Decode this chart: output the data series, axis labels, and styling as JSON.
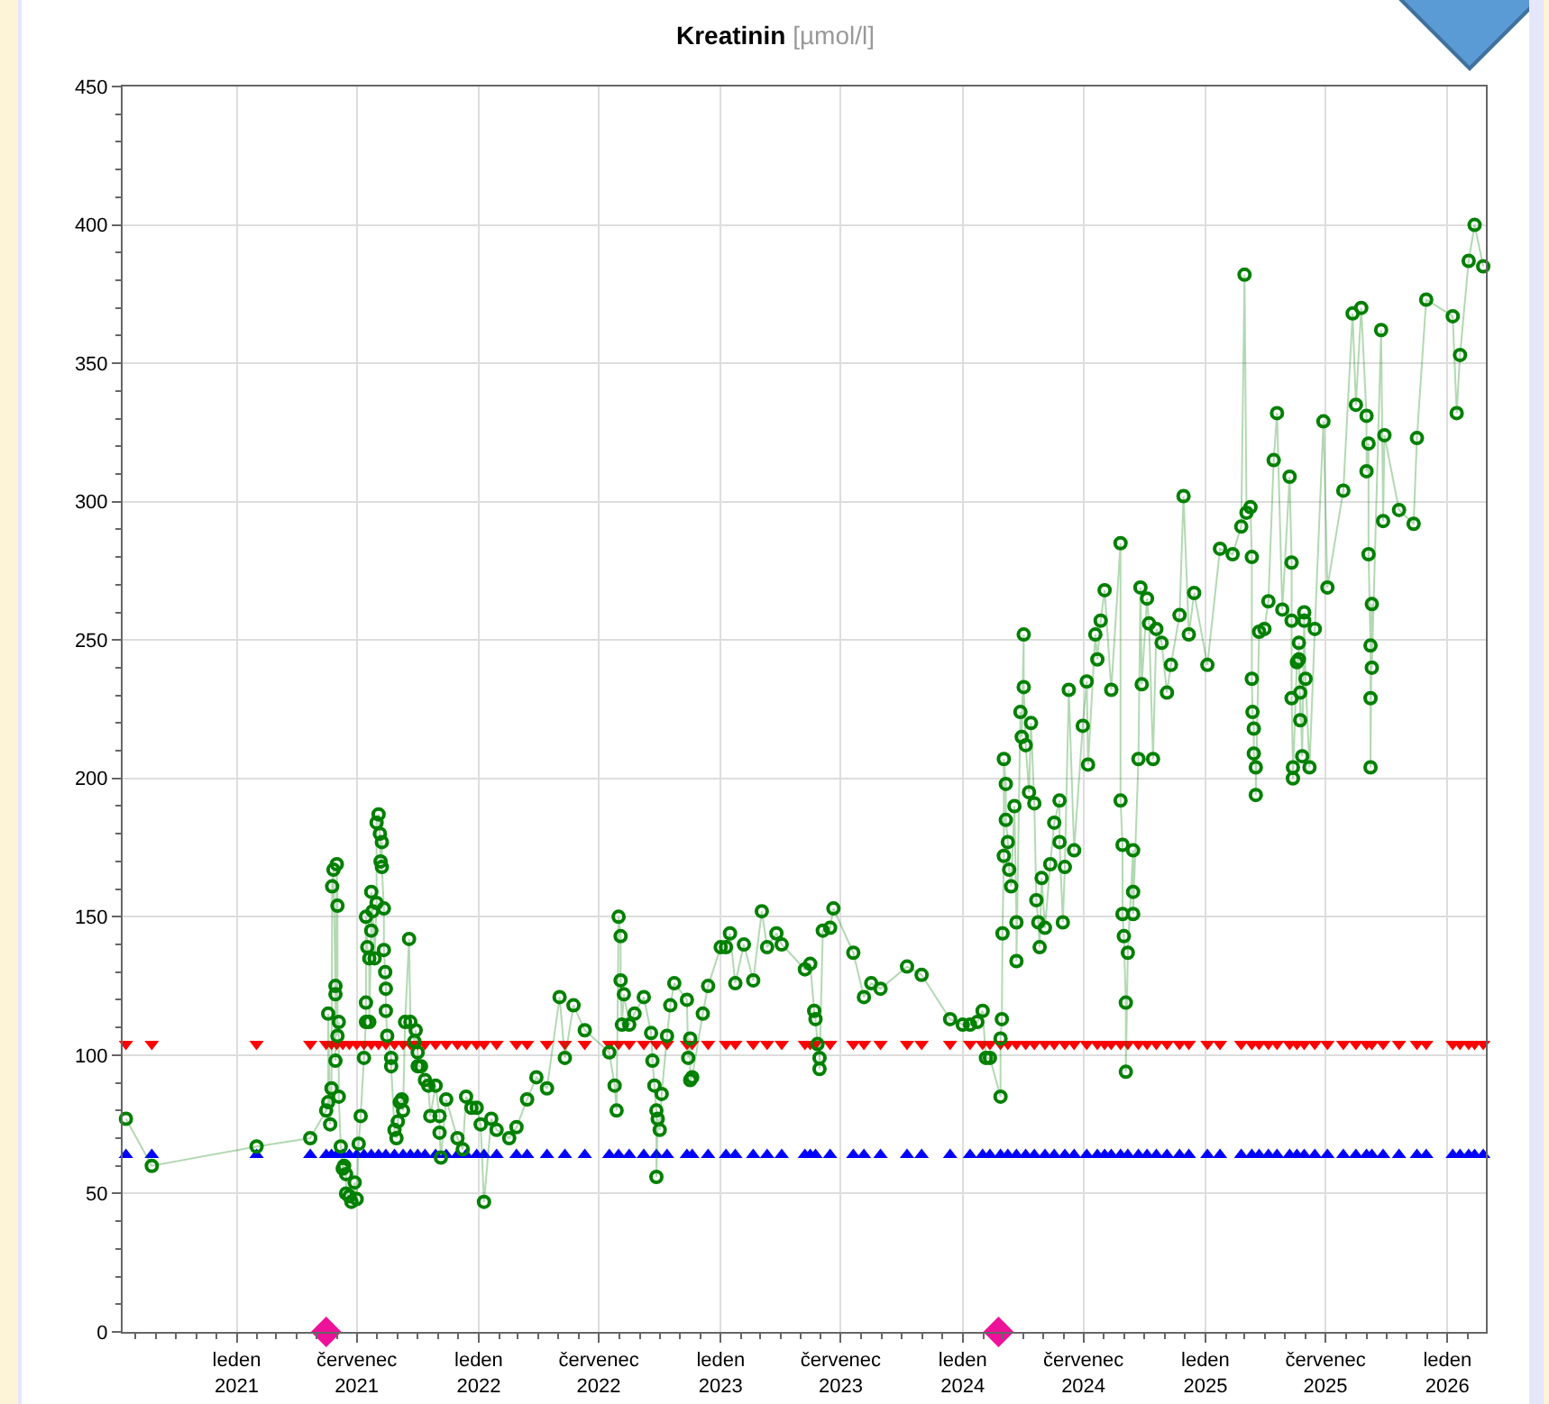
{
  "chart_data": {
    "type": "line",
    "title": "Kreatinin",
    "subtitle": "[µmol/l]",
    "xlim": [
      "2020-07-13",
      "2026-02-28"
    ],
    "xticks": [
      {
        "value": "2021-01-01",
        "label": "leden\n2021"
      },
      {
        "value": "2021-07-01",
        "label": "červenec\n2021"
      },
      {
        "value": "2022-01-01",
        "label": "leden\n2022"
      },
      {
        "value": "2022-07-01",
        "label": "červenec\n2022"
      },
      {
        "value": "2023-01-01",
        "label": "leden\n2023"
      },
      {
        "value": "2023-07-01",
        "label": "červenec\n2023"
      },
      {
        "value": "2024-01-01",
        "label": "leden\n2024"
      },
      {
        "value": "2024-07-01",
        "label": "červenec\n2024"
      },
      {
        "value": "2025-01-01",
        "label": "leden\n2025"
      },
      {
        "value": "2025-07-01",
        "label": "červenec\n2025"
      },
      {
        "value": "2026-01-01",
        "label": "leden\n2026"
      }
    ],
    "ylim": [
      0,
      450
    ],
    "yticks": [
      0,
      50,
      100,
      150,
      200,
      250,
      300,
      350,
      400,
      450
    ],
    "grid": true,
    "series": [
      {
        "type": "scatter",
        "marker": "triangle",
        "color": "#0000ff",
        "x": [
          "2020-07-18",
          "2020-08-26",
          "2021-01-31",
          "2021-04-22",
          "2021-05-16",
          "2021-05-24",
          "2021-06-01",
          "2021-06-10",
          "2021-06-20",
          "2021-07-01",
          "2021-07-12",
          "2021-07-23",
          "2021-08-03",
          "2021-08-14",
          "2021-08-27",
          "2021-09-09",
          "2021-09-20",
          "2021-10-01",
          "2021-10-12",
          "2021-10-28",
          "2021-11-13",
          "2021-11-30",
          "2021-12-13",
          "2021-12-29",
          "2022-01-09",
          "2022-01-28",
          "2022-02-27",
          "2022-03-15",
          "2022-04-14",
          "2022-05-11",
          "2022-06-10",
          "2022-07-17",
          "2022-07-31",
          "2022-08-16",
          "2022-09-07",
          "2022-09-26",
          "2022-10-12",
          "2022-11-11",
          "2022-11-19",
          "2022-12-13",
          "2023-01-09",
          "2023-01-23",
          "2023-02-19",
          "2023-03-12",
          "2023-04-03",
          "2023-05-08",
          "2023-05-16",
          "2023-05-24",
          "2023-06-15",
          "2023-07-20",
          "2023-08-05",
          "2023-08-30",
          "2023-10-09",
          "2023-10-31",
          "2023-12-13",
          "2024-01-12",
          "2024-01-31",
          "2024-02-11",
          "2024-02-27",
          "2024-03-09",
          "2024-03-22",
          "2024-04-05",
          "2024-04-18",
          "2024-05-04",
          "2024-05-18",
          "2024-06-03",
          "2024-06-17",
          "2024-07-06",
          "2024-07-22",
          "2024-08-02",
          "2024-08-12",
          "2024-08-26",
          "2024-09-06",
          "2024-09-22",
          "2024-10-05",
          "2024-10-19",
          "2024-11-04",
          "2024-11-23",
          "2024-12-07",
          "2025-01-04",
          "2025-01-23",
          "2025-02-24",
          "2025-03-12",
          "2025-03-23",
          "2025-04-06",
          "2025-04-19",
          "2025-05-08",
          "2025-05-19",
          "2025-05-30",
          "2025-06-15",
          "2025-07-04",
          "2025-07-28",
          "2025-08-16",
          "2025-09-01",
          "2025-09-09",
          "2025-09-26",
          "2025-10-20",
          "2025-11-16",
          "2025-11-30",
          "2026-01-09",
          "2026-01-20",
          "2026-02-02",
          "2026-02-11",
          "2026-02-24"
        ],
        "values": [
          64,
          64,
          64,
          64,
          64,
          64,
          64,
          64,
          64,
          64,
          64,
          64,
          64,
          64,
          64,
          64,
          64,
          64,
          64,
          64,
          64,
          64,
          64,
          64,
          64,
          64,
          64,
          64,
          64,
          64,
          64,
          64,
          64,
          64,
          64,
          64,
          64,
          64,
          64,
          64,
          64,
          64,
          64,
          64,
          64,
          64,
          64,
          64,
          64,
          64,
          64,
          64,
          64,
          64,
          64,
          64,
          64,
          64,
          64,
          64,
          64,
          64,
          64,
          64,
          64,
          64,
          64,
          64,
          64,
          64,
          64,
          64,
          64,
          64,
          64,
          64,
          64,
          64,
          64,
          64,
          64,
          64,
          64,
          64,
          64,
          64,
          64,
          64,
          64,
          64,
          64,
          64,
          64,
          64,
          64,
          64,
          64,
          64,
          64,
          64,
          64,
          64,
          64,
          64
        ]
      },
      {
        "type": "scatter",
        "marker": "triangle-down",
        "color": "#ff0000",
        "x": [
          "2020-07-18",
          "2020-08-26",
          "2021-01-31",
          "2021-04-22",
          "2021-05-16",
          "2021-05-24",
          "2021-06-01",
          "2021-06-10",
          "2021-06-20",
          "2021-07-01",
          "2021-07-12",
          "2021-07-23",
          "2021-08-03",
          "2021-08-14",
          "2021-08-27",
          "2021-09-09",
          "2021-09-20",
          "2021-10-01",
          "2021-10-12",
          "2021-10-28",
          "2021-11-13",
          "2021-11-30",
          "2021-12-13",
          "2021-12-29",
          "2022-01-09",
          "2022-01-28",
          "2022-02-27",
          "2022-03-15",
          "2022-04-14",
          "2022-05-11",
          "2022-06-10",
          "2022-07-17",
          "2022-07-31",
          "2022-08-16",
          "2022-09-07",
          "2022-09-26",
          "2022-10-12",
          "2022-11-11",
          "2022-11-19",
          "2022-12-13",
          "2023-01-09",
          "2023-01-23",
          "2023-02-19",
          "2023-03-12",
          "2023-04-03",
          "2023-05-08",
          "2023-05-16",
          "2023-05-24",
          "2023-06-15",
          "2023-07-20",
          "2023-08-05",
          "2023-08-30",
          "2023-10-09",
          "2023-10-31",
          "2023-12-13",
          "2024-01-12",
          "2024-01-31",
          "2024-02-11",
          "2024-02-27",
          "2024-03-09",
          "2024-03-22",
          "2024-04-05",
          "2024-04-18",
          "2024-05-04",
          "2024-05-18",
          "2024-06-03",
          "2024-06-17",
          "2024-07-06",
          "2024-07-22",
          "2024-08-02",
          "2024-08-12",
          "2024-08-26",
          "2024-09-06",
          "2024-09-22",
          "2024-10-05",
          "2024-10-19",
          "2024-11-04",
          "2024-11-23",
          "2024-12-07",
          "2025-01-04",
          "2025-01-23",
          "2025-02-24",
          "2025-03-12",
          "2025-03-23",
          "2025-04-06",
          "2025-04-19",
          "2025-05-08",
          "2025-05-19",
          "2025-05-30",
          "2025-06-15",
          "2025-07-04",
          "2025-07-28",
          "2025-08-16",
          "2025-09-01",
          "2025-09-09",
          "2025-09-26",
          "2025-10-20",
          "2025-11-16",
          "2025-11-30",
          "2026-01-09",
          "2026-01-20",
          "2026-02-02",
          "2026-02-11",
          "2026-02-24"
        ],
        "values": [
          104,
          104,
          104,
          104,
          104,
          104,
          104,
          104,
          104,
          104,
          104,
          104,
          104,
          104,
          104,
          104,
          104,
          104,
          104,
          104,
          104,
          104,
          104,
          104,
          104,
          104,
          104,
          104,
          104,
          104,
          104,
          104,
          104,
          104,
          104,
          104,
          104,
          104,
          104,
          104,
          104,
          104,
          104,
          104,
          104,
          104,
          104,
          104,
          104,
          104,
          104,
          104,
          104,
          104,
          104,
          104,
          104,
          104,
          104,
          104,
          104,
          104,
          104,
          104,
          104,
          104,
          104,
          104,
          104,
          104,
          104,
          104,
          104,
          104,
          104,
          104,
          104,
          104,
          104,
          104,
          104,
          104,
          104,
          104,
          104,
          104,
          104,
          104,
          104,
          104,
          104,
          104,
          104,
          104,
          104,
          104,
          104,
          104,
          104,
          104,
          104,
          104,
          104,
          104
        ]
      },
      {
        "marker": "circle",
        "color": "#008000",
        "x": [
          "2020-07-18",
          "2020-08-26",
          "2021-01-31",
          "2021-04-22",
          "2021-05-16",
          "2021-05-19",
          "2021-05-19",
          "2021-05-22",
          "2021-05-24",
          "2021-05-25",
          "2021-05-27",
          "2021-05-30",
          "2021-05-30",
          "2021-05-30",
          "2021-06-01",
          "2021-06-02",
          "2021-06-02",
          "2021-06-04",
          "2021-06-04",
          "2021-06-07",
          "2021-06-10",
          "2021-06-12",
          "2021-06-15",
          "2021-06-15",
          "2021-06-20",
          "2021-06-23",
          "2021-06-28",
          "2021-07-01",
          "2021-07-04",
          "2021-07-07",
          "2021-07-12",
          "2021-07-15",
          "2021-07-15",
          "2021-07-15",
          "2021-07-17",
          "2021-07-20",
          "2021-07-20",
          "2021-07-23",
          "2021-07-23",
          "2021-07-25",
          "2021-07-28",
          "2021-07-31",
          "2021-07-31",
          "2021-08-03",
          "2021-08-05",
          "2021-08-06",
          "2021-08-08",
          "2021-08-08",
          "2021-08-11",
          "2021-08-11",
          "2021-08-13",
          "2021-08-14",
          "2021-08-14",
          "2021-08-16",
          "2021-08-22",
          "2021-08-22",
          "2021-08-27",
          "2021-08-30",
          "2021-09-01",
          "2021-09-04",
          "2021-09-07",
          "2021-09-09",
          "2021-09-12",
          "2021-09-18",
          "2021-09-20",
          "2021-09-26",
          "2021-09-28",
          "2021-10-01",
          "2021-10-01",
          "2021-10-06",
          "2021-10-12",
          "2021-10-17",
          "2021-10-20",
          "2021-10-28",
          "2021-11-03",
          "2021-11-03",
          "2021-11-05",
          "2021-11-13",
          "2021-11-30",
          "2021-12-08",
          "2021-12-13",
          "2021-12-21",
          "2021-12-29",
          "2022-01-04",
          "2022-01-09",
          "2022-01-20",
          "2022-01-28",
          "2022-02-16",
          "2022-02-27",
          "2022-03-15",
          "2022-03-29",
          "2022-04-14",
          "2022-05-03",
          "2022-05-11",
          "2022-05-24",
          "2022-06-10",
          "2022-07-17",
          "2022-07-25",
          "2022-07-28",
          "2022-07-31",
          "2022-08-03",
          "2022-08-03",
          "2022-08-05",
          "2022-08-08",
          "2022-08-16",
          "2022-08-24",
          "2022-09-07",
          "2022-09-18",
          "2022-09-20",
          "2022-09-23",
          "2022-09-26",
          "2022-09-26",
          "2022-09-28",
          "2022-10-01",
          "2022-10-04",
          "2022-10-12",
          "2022-10-17",
          "2022-10-23",
          "2022-11-11",
          "2022-11-13",
          "2022-11-16",
          "2022-11-16",
          "2022-11-19",
          "2022-12-05",
          "2022-12-13",
          "2023-01-01",
          "2023-01-09",
          "2023-01-15",
          "2023-01-23",
          "2023-02-05",
          "2023-02-19",
          "2023-03-04",
          "2023-03-12",
          "2023-03-26",
          "2023-04-03",
          "2023-05-08",
          "2023-05-16",
          "2023-05-22",
          "2023-05-24",
          "2023-05-27",
          "2023-05-30",
          "2023-05-30",
          "2023-06-04",
          "2023-06-15",
          "2023-06-20",
          "2023-07-20",
          "2023-08-05",
          "2023-08-16",
          "2023-08-30",
          "2023-10-09",
          "2023-10-31",
          "2023-12-13",
          "2024-01-01",
          "2024-01-12",
          "2024-01-23",
          "2024-01-31",
          "2024-02-05",
          "2024-02-11",
          "2024-02-27",
          "2024-02-27",
          "2024-02-29",
          "2024-03-01",
          "2024-03-03",
          "2024-03-03",
          "2024-03-06",
          "2024-03-06",
          "2024-03-09",
          "2024-03-11",
          "2024-03-14",
          "2024-03-19",
          "2024-03-22",
          "2024-03-22",
          "2024-03-28",
          "2024-03-30",
          "2024-04-02",
          "2024-04-02",
          "2024-04-05",
          "2024-04-10",
          "2024-04-13",
          "2024-04-18",
          "2024-04-21",
          "2024-04-24",
          "2024-04-26",
          "2024-04-29",
          "2024-05-04",
          "2024-05-12",
          "2024-05-18",
          "2024-05-26",
          "2024-05-26",
          "2024-05-31",
          "2024-06-03",
          "2024-06-09",
          "2024-06-17",
          "2024-06-30",
          "2024-07-06",
          "2024-07-08",
          "2024-07-19",
          "2024-07-22",
          "2024-07-27",
          "2024-08-02",
          "2024-08-12",
          "2024-08-26",
          "2024-08-26",
          "2024-08-29",
          "2024-08-29",
          "2024-08-31",
          "2024-09-03",
          "2024-09-03",
          "2024-09-06",
          "2024-09-14",
          "2024-09-14",
          "2024-09-14",
          "2024-09-22",
          "2024-09-25",
          "2024-09-27",
          "2024-10-05",
          "2024-10-08",
          "2024-10-14",
          "2024-10-19",
          "2024-10-27",
          "2024-11-04",
          "2024-11-10",
          "2024-11-23",
          "2024-11-29",
          "2024-12-07",
          "2024-12-15",
          "2025-01-04",
          "2025-01-23",
          "2025-02-11",
          "2025-02-24",
          "2025-03-01",
          "2025-03-04",
          "2025-03-10",
          "2025-03-12",
          "2025-03-12",
          "2025-03-13",
          "2025-03-15",
          "2025-03-15",
          "2025-03-18",
          "2025-03-18",
          "2025-03-23",
          "2025-03-31",
          "2025-04-06",
          "2025-04-14",
          "2025-04-19",
          "2025-04-27",
          "2025-05-08",
          "2025-05-11",
          "2025-05-11",
          "2025-05-11",
          "2025-05-13",
          "2025-05-13",
          "2025-05-19",
          "2025-05-22",
          "2025-05-22",
          "2025-05-24",
          "2025-05-24",
          "2025-05-27",
          "2025-05-30",
          "2025-05-30",
          "2025-06-01",
          "2025-06-07",
          "2025-06-15",
          "2025-06-28",
          "2025-07-04",
          "2025-07-28",
          "2025-08-11",
          "2025-08-16",
          "2025-08-24",
          "2025-09-01",
          "2025-09-01",
          "2025-09-04",
          "2025-09-04",
          "2025-09-07",
          "2025-09-07",
          "2025-09-07",
          "2025-09-09",
          "2025-09-09",
          "2025-09-23",
          "2025-09-26",
          "2025-09-28",
          "2025-10-20",
          "2025-11-11",
          "2025-11-16",
          "2025-11-30",
          "2026-01-09",
          "2026-01-15",
          "2026-01-20",
          "2026-02-02",
          "2026-02-11",
          "2026-02-24"
        ],
        "values": [
          77,
          60,
          67,
          70,
          80,
          83,
          115,
          75,
          88,
          161,
          167,
          125,
          122,
          98,
          169,
          154,
          107,
          112,
          85,
          67,
          59,
          60,
          57,
          50,
          49,
          47,
          54,
          48,
          68,
          78,
          99,
          112,
          119,
          150,
          139,
          135,
          112,
          145,
          159,
          152,
          135,
          155,
          184,
          187,
          180,
          170,
          177,
          168,
          153,
          138,
          130,
          124,
          116,
          107,
          99,
          96,
          73,
          70,
          76,
          83,
          84,
          80,
          112,
          142,
          112,
          105,
          109,
          101,
          96,
          96,
          91,
          89,
          78,
          89,
          78,
          72,
          63,
          84,
          70,
          66,
          85,
          81,
          81,
          75,
          47,
          77,
          73,
          70,
          74,
          84,
          92,
          88,
          121,
          99,
          118,
          109,
          101,
          89,
          80,
          150,
          143,
          127,
          111,
          122,
          111,
          115,
          121,
          108,
          98,
          89,
          80,
          56,
          77,
          73,
          86,
          107,
          118,
          126,
          120,
          99,
          106,
          91,
          92,
          115,
          125,
          139,
          139,
          144,
          126,
          140,
          127,
          152,
          139,
          144,
          140,
          131,
          133,
          116,
          113,
          104,
          99,
          95,
          145,
          146,
          153,
          137,
          121,
          126,
          124,
          132,
          129,
          113,
          111,
          111,
          112,
          116,
          99,
          99,
          85,
          106,
          113,
          144,
          172,
          207,
          198,
          185,
          177,
          167,
          161,
          190,
          148,
          134,
          224,
          215,
          252,
          233,
          212,
          195,
          220,
          191,
          156,
          148,
          139,
          164,
          146,
          169,
          184,
          192,
          177,
          148,
          168,
          232,
          174,
          219,
          235,
          205,
          252,
          243,
          257,
          268,
          232,
          285,
          192,
          176,
          151,
          143,
          119,
          94,
          137,
          174,
          159,
          151,
          207,
          269,
          234,
          265,
          256,
          207,
          254,
          249,
          231,
          241,
          259,
          302,
          252,
          267,
          241,
          283,
          281,
          291,
          382,
          296,
          298,
          280,
          236,
          224,
          218,
          209,
          204,
          194,
          253,
          254,
          264,
          315,
          332,
          261,
          309,
          278,
          257,
          229,
          204,
          200,
          242,
          249,
          243,
          221,
          231,
          208,
          260,
          257,
          236,
          204,
          254,
          329,
          269,
          304,
          368,
          335,
          370,
          331,
          311,
          321,
          281,
          248,
          229,
          204,
          263,
          240,
          362,
          293,
          324,
          297,
          292,
          323,
          373,
          367,
          332,
          353,
          387,
          400,
          385
        ]
      },
      {
        "type": "scatter",
        "marker": "diamond",
        "color": "#ee1199",
        "x": [
          "2021-05-16",
          "2024-02-24"
        ],
        "values": [
          0,
          0
        ]
      }
    ]
  }
}
